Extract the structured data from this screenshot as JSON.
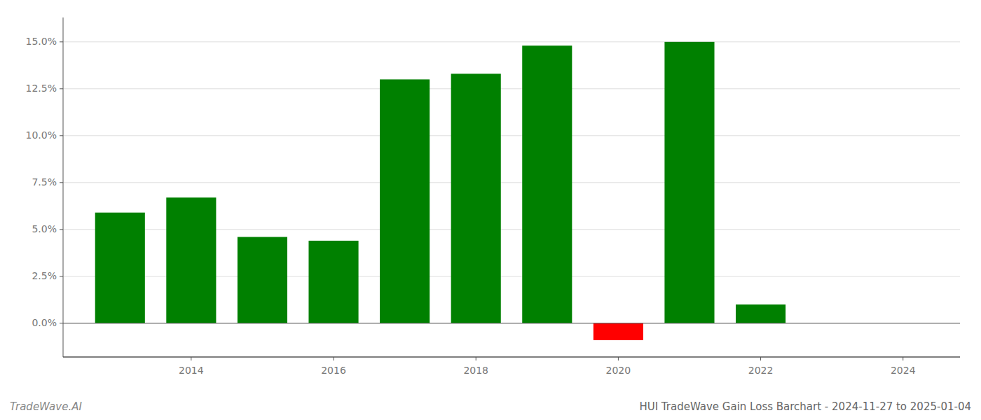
{
  "chart_data": {
    "type": "bar",
    "title": "HUI TradeWave Gain Loss Barchart - 2024-11-27 to 2025-01-04",
    "annotations": [
      "TradeWave.AI"
    ],
    "x": [
      2013,
      2014,
      2015,
      2016,
      2017,
      2018,
      2019,
      2020,
      2021,
      2022,
      2023
    ],
    "values": [
      0.059,
      0.067,
      0.046,
      0.044,
      0.13,
      0.133,
      0.148,
      -0.009,
      0.15,
      0.01,
      0.0
    ],
    "colors": [
      "#008000",
      "#008000",
      "#008000",
      "#008000",
      "#008000",
      "#008000",
      "#008000",
      "#ff0000",
      "#008000",
      "#008000",
      "#ffffff"
    ],
    "xlim": [
      2012.2,
      2024.8
    ],
    "xticks": [
      2014,
      2016,
      2018,
      2020,
      2022,
      2024
    ],
    "ylim": [
      -0.018,
      0.163
    ],
    "yticks": [
      {
        "value": 0.0,
        "label": "0.0%"
      },
      {
        "value": 0.025,
        "label": "2.5%"
      },
      {
        "value": 0.05,
        "label": "5.0%"
      },
      {
        "value": 0.075,
        "label": "7.5%"
      },
      {
        "value": 0.1,
        "label": "10.0%"
      },
      {
        "value": 0.125,
        "label": "12.5%"
      },
      {
        "value": 0.15,
        "label": "15.0%"
      }
    ],
    "grid": true
  }
}
